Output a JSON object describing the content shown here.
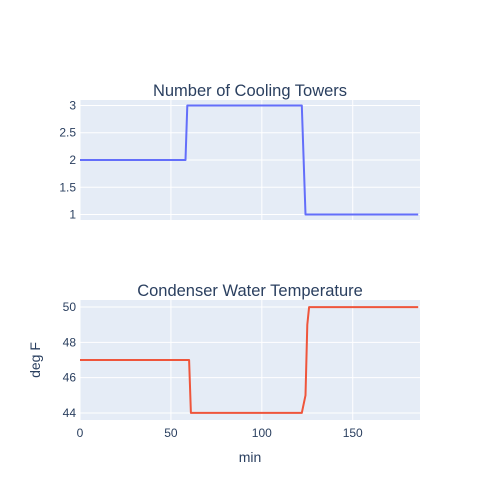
{
  "chart_data": [
    {
      "type": "line",
      "title": "Number of Cooling Towers",
      "xlabel": "",
      "ylabel": "",
      "xlim": [
        0,
        187
      ],
      "ylim": [
        0.9,
        3.1
      ],
      "x_ticks": [
        0,
        50,
        100,
        150
      ],
      "y_ticks": [
        1,
        1.5,
        2,
        2.5,
        3
      ],
      "y_tick_labels": [
        "1",
        "1.5",
        "2",
        "2.5",
        "3"
      ],
      "show_x_tick_labels": false,
      "grid": true,
      "color": "#636efa",
      "series": [
        {
          "x": [
            0,
            58,
            59,
            122,
            124,
            186
          ],
          "y": [
            2,
            2,
            3,
            3,
            1,
            1
          ]
        }
      ]
    },
    {
      "type": "line",
      "title": "Condenser Water Temperature",
      "xlabel": "min",
      "ylabel": "deg F",
      "xlim": [
        0,
        187
      ],
      "ylim": [
        43.6,
        50.4
      ],
      "x_ticks": [
        0,
        50,
        100,
        150
      ],
      "x_tick_labels": [
        "0",
        "50",
        "100",
        "150"
      ],
      "y_ticks": [
        44,
        46,
        48,
        50
      ],
      "y_tick_labels": [
        "44",
        "46",
        "48",
        "50"
      ],
      "show_x_tick_labels": true,
      "grid": true,
      "color": "#ef553b",
      "series": [
        {
          "x": [
            0,
            60,
            61,
            122,
            124,
            125,
            126,
            186
          ],
          "y": [
            47,
            47,
            44,
            44,
            45,
            49,
            50,
            50
          ]
        }
      ]
    }
  ]
}
